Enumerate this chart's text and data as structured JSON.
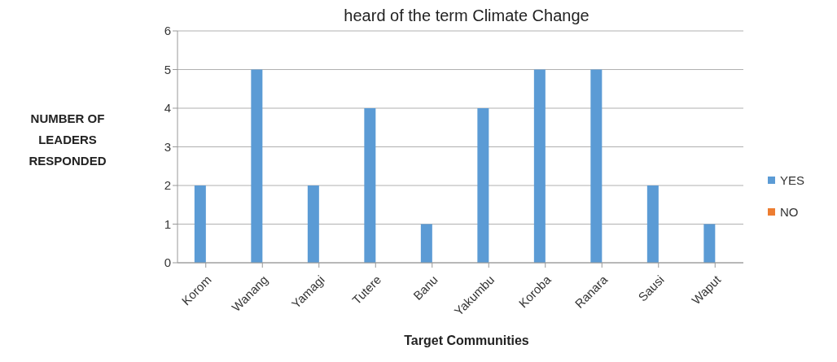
{
  "chart_data": {
    "type": "bar",
    "title": "heard of the term Climate Change",
    "xlabel": "Target Communities",
    "ylabel": "NUMBER OF LEADERS RESPONDED",
    "categories": [
      "Korom",
      "Wanang",
      "Yamagi",
      "Tutere",
      "Banu",
      "Yakumbu",
      "Koroba",
      "Ranara",
      "Sausi",
      "Waput"
    ],
    "series": [
      {
        "name": "YES",
        "color": "#5b9bd5",
        "values": [
          2,
          5,
          2,
          4,
          1,
          4,
          5,
          5,
          2,
          1
        ]
      },
      {
        "name": "NO",
        "color": "#ed7d31",
        "values": [
          0,
          0,
          0,
          0,
          0,
          0,
          0,
          0,
          0,
          0
        ]
      }
    ],
    "ylim": [
      0,
      6
    ],
    "yticks": [
      0,
      1,
      2,
      3,
      4,
      5,
      6
    ],
    "grid": "y",
    "legend": "right"
  }
}
